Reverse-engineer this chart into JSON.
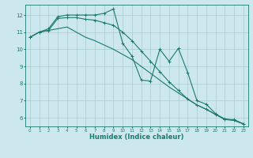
{
  "xlabel": "Humidex (Indice chaleur)",
  "bg_color": "#cce8ee",
  "grid_color": "#aacccc",
  "line_color": "#1a7a6e",
  "xlim": [
    -0.5,
    23.5
  ],
  "ylim": [
    5.5,
    12.6
  ],
  "yticks": [
    6,
    7,
    8,
    9,
    10,
    11,
    12
  ],
  "xticks": [
    0,
    1,
    2,
    3,
    4,
    5,
    6,
    7,
    8,
    9,
    10,
    11,
    12,
    13,
    14,
    15,
    16,
    17,
    18,
    19,
    20,
    21,
    22,
    23
  ],
  "series1_x": [
    0,
    1,
    2,
    3,
    4,
    5,
    6,
    7,
    8,
    9,
    10,
    11,
    12,
    13,
    14,
    15,
    16,
    17,
    18,
    19,
    20,
    21,
    22,
    23
  ],
  "series1_y": [
    10.7,
    11.0,
    11.2,
    11.9,
    12.0,
    12.0,
    12.0,
    12.0,
    12.1,
    12.35,
    10.35,
    9.6,
    8.2,
    8.15,
    10.0,
    9.3,
    10.05,
    8.65,
    7.0,
    6.8,
    6.25,
    5.9,
    5.9,
    5.65
  ],
  "series2_x": [
    0,
    1,
    2,
    3,
    4,
    5,
    6,
    7,
    8,
    9,
    10,
    11,
    12,
    13,
    14,
    15,
    16,
    17,
    18,
    19,
    20,
    21,
    22,
    23
  ],
  "series2_y": [
    10.7,
    11.0,
    11.1,
    11.2,
    11.3,
    11.0,
    10.7,
    10.5,
    10.25,
    10.0,
    9.7,
    9.4,
    9.0,
    8.6,
    8.2,
    7.8,
    7.45,
    7.1,
    6.75,
    6.5,
    6.2,
    5.95,
    5.85,
    5.65
  ],
  "series3_x": [
    0,
    1,
    2,
    3,
    4,
    5,
    6,
    7,
    8,
    9,
    10,
    11,
    12,
    13,
    14,
    15,
    16,
    17,
    18,
    19,
    20,
    21,
    22,
    23
  ],
  "series3_y": [
    10.7,
    11.0,
    11.1,
    11.8,
    11.85,
    11.85,
    11.75,
    11.7,
    11.55,
    11.4,
    11.0,
    10.5,
    9.9,
    9.3,
    8.7,
    8.1,
    7.6,
    7.1,
    6.75,
    6.5,
    6.2,
    5.9,
    5.85,
    5.65
  ]
}
